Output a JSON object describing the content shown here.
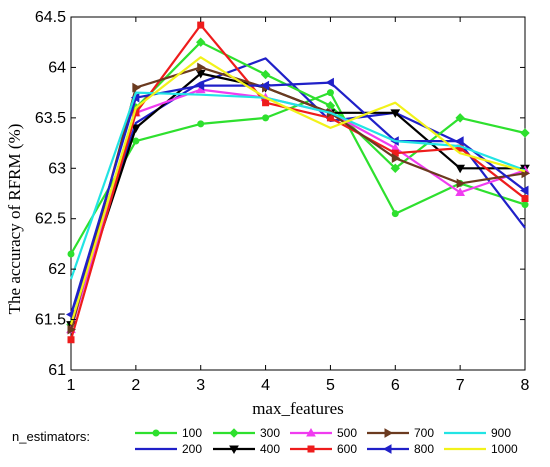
{
  "chart_data": {
    "type": "line",
    "xlabel": "max_features",
    "ylabel": "The accuracy of RFRM (%)",
    "x": [
      1,
      2,
      3,
      4,
      5,
      6,
      7,
      8
    ],
    "xlim": [
      1,
      8
    ],
    "ylim": [
      61,
      64.5
    ],
    "yticks": [
      61,
      61.5,
      62,
      62.5,
      63,
      63.5,
      64,
      64.5
    ],
    "yticklabels": [
      "61",
      "61.5",
      "62",
      "62.5",
      "63",
      "63.5",
      "64",
      "64.5"
    ],
    "xticklabels": [
      "1",
      "2",
      "3",
      "4",
      "5",
      "6",
      "7",
      "8"
    ],
    "grid": false,
    "legend_title": "n_estimators:",
    "legend_position": "bottom",
    "series": [
      {
        "name": "100",
        "color": "#2ee02e",
        "marker": "circle",
        "values": [
          62.15,
          63.27,
          63.44,
          63.5,
          63.75,
          62.55,
          62.85,
          62.64
        ]
      },
      {
        "name": "200",
        "color": "#2020c8",
        "marker": "none",
        "values": [
          61.55,
          63.45,
          63.85,
          64.09,
          63.47,
          63.55,
          63.25,
          62.41
        ]
      },
      {
        "name": "300",
        "color": "#2ee02e",
        "marker": "diamond",
        "values": [
          61.45,
          63.6,
          64.25,
          63.93,
          63.62,
          63.0,
          63.5,
          63.35
        ]
      },
      {
        "name": "400",
        "color": "#000000",
        "marker": "triangle-down",
        "values": [
          61.45,
          63.4,
          63.94,
          63.8,
          63.55,
          63.55,
          63.0,
          63.0
        ]
      },
      {
        "name": "500",
        "color": "#f03cf0",
        "marker": "triangle-up",
        "values": [
          61.4,
          63.55,
          63.78,
          63.7,
          63.55,
          63.2,
          62.76,
          62.98
        ]
      },
      {
        "name": "600",
        "color": "#ee1c1c",
        "marker": "square",
        "values": [
          61.3,
          63.55,
          64.42,
          63.65,
          63.5,
          63.15,
          63.2,
          62.7
        ]
      },
      {
        "name": "700",
        "color": "#6b3a1f",
        "marker": "triangle-right",
        "values": [
          61.4,
          63.8,
          64.0,
          63.8,
          63.55,
          63.1,
          62.85,
          62.95
        ]
      },
      {
        "name": "800",
        "color": "#2020c8",
        "marker": "triangle-left",
        "values": [
          61.55,
          63.7,
          63.82,
          63.82,
          63.85,
          63.27,
          63.27,
          62.78
        ]
      },
      {
        "name": "900",
        "color": "#22e4e4",
        "marker": "none",
        "values": [
          61.9,
          63.75,
          63.73,
          63.7,
          63.55,
          63.27,
          63.22,
          62.98
        ]
      },
      {
        "name": "1000",
        "color": "#f2f21a",
        "marker": "none",
        "values": [
          61.45,
          63.6,
          64.1,
          63.7,
          63.4,
          63.65,
          63.15,
          62.97
        ]
      }
    ]
  }
}
